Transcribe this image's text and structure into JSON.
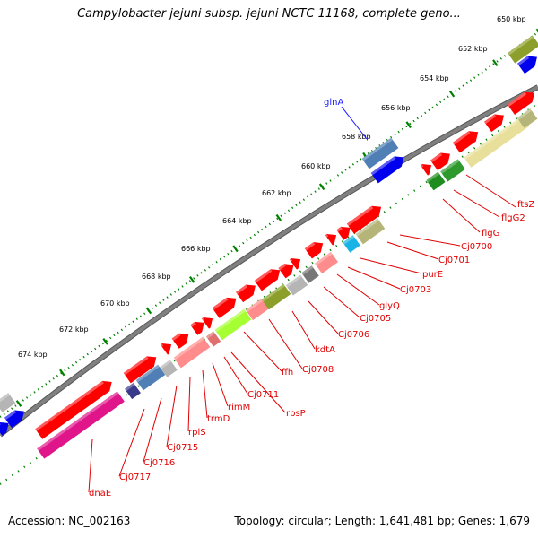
{
  "title": "Campylobacter jejuni subsp. jejuni NCTC 11168, complete geno...",
  "footer": {
    "accession": "Accession: NC_002163",
    "summary": "Topology: circular; Length: 1,641,481 bp; Genes: 1,679"
  },
  "colors": {
    "forward_gene": "#ff0000",
    "backbone": "#808080",
    "scale_ticks": "#008000",
    "gene_label": "#e00000",
    "highlight_label": "#1a1aff"
  },
  "scale": {
    "unit": "kbp",
    "labels": [
      "650 kbp",
      "652 kbp",
      "654 kbp",
      "656 kbp",
      "658 kbp",
      "660 kbp",
      "662 kbp",
      "664 kbp",
      "666 kbp",
      "668 kbp",
      "670 kbp",
      "672 kbp",
      "674 kbp"
    ]
  },
  "gene_labels": [
    {
      "name": "ftsZ"
    },
    {
      "name": "flgG2"
    },
    {
      "name": "flgG"
    },
    {
      "name": "Cj0700"
    },
    {
      "name": "Cj0701"
    },
    {
      "name": "purE"
    },
    {
      "name": "Cj0703"
    },
    {
      "name": "glyQ"
    },
    {
      "name": "Cj0705"
    },
    {
      "name": "Cj0706"
    },
    {
      "name": "kdtA"
    },
    {
      "name": "Cj0708"
    },
    {
      "name": "ffh"
    },
    {
      "name": "rpsP"
    },
    {
      "name": "Cj0711"
    },
    {
      "name": "rimM"
    },
    {
      "name": "trmD"
    },
    {
      "name": "rplS"
    },
    {
      "name": "Cj0715"
    },
    {
      "name": "Cj0716"
    },
    {
      "name": "Cj0717"
    },
    {
      "name": "dnaE"
    }
  ],
  "highlight_label": {
    "name": "glnA"
  }
}
